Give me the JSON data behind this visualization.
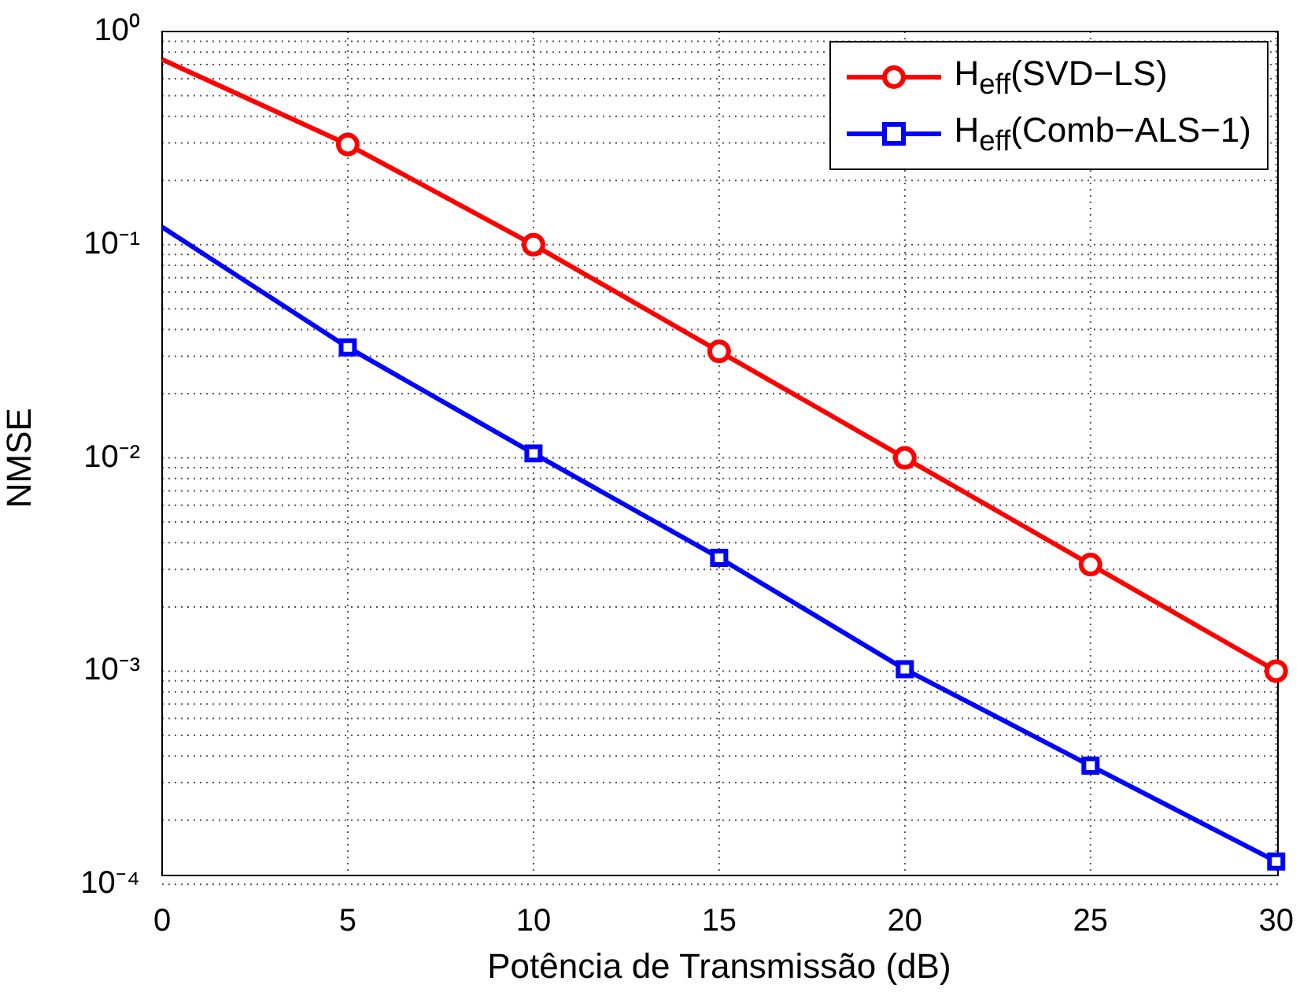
{
  "chart_data": {
    "type": "line",
    "xlabel": "Potência de Transmissão (dB)",
    "ylabel": "NMSE",
    "x": [
      0,
      5,
      10,
      15,
      20,
      25,
      30
    ],
    "log": "y",
    "xlim": [
      0,
      30
    ],
    "xticks": [
      0,
      5,
      10,
      15,
      20,
      25,
      30
    ],
    "ylim": [
      0.0001,
      1
    ],
    "yticks": [
      {
        "value": 0.0001,
        "label": "10⁻⁴"
      },
      {
        "value": 0.001,
        "label": "10⁻³"
      },
      {
        "value": 0.01,
        "label": "10⁻²"
      },
      {
        "value": 0.1,
        "label": "10⁻¹"
      },
      {
        "value": 1,
        "label": "10⁰"
      }
    ],
    "grid": true,
    "legend": "top right",
    "line_style": "solid",
    "series": [
      {
        "name": "H$_{eff}$(SVD−LS)",
        "color": "#ff0000",
        "marker": "circle",
        "values": [
          0.74,
          0.295,
          0.1,
          0.0316,
          0.01,
          0.00316,
          0.001
        ]
      },
      {
        "name": "H$_{eff}$(Comb−ALS−1)",
        "color": "#0000ff",
        "marker": "square",
        "values": [
          0.121,
          0.033,
          0.0105,
          0.0034,
          0.00102,
          0.00036,
          0.000128
        ]
      }
    ]
  }
}
